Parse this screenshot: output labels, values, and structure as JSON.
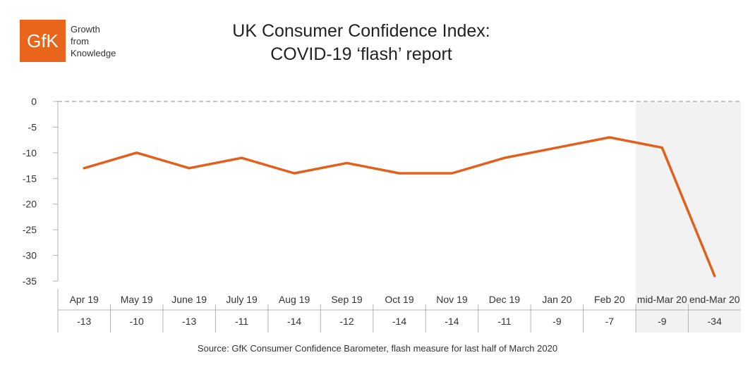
{
  "logo": {
    "mark": "GfK",
    "tagline": [
      "Growth",
      "from",
      "Knowledge"
    ]
  },
  "title_lines": [
    "UK Consumer Confidence Index:",
    "COVID-19 ‘flash’ report"
  ],
  "source": "Source: GfK Consumer Confidence Barometer, flash measure for last half of March 2020",
  "colors": {
    "line": "#e0601c",
    "brand": "#e8651b",
    "highlight": "#f2f2f2",
    "grid": "#b3b3b3"
  },
  "chart_data": {
    "type": "line",
    "title": "UK Consumer Confidence Index: COVID-19 ‘flash’ report",
    "categories": [
      "Apr 19",
      "May 19",
      "June 19",
      "July 19",
      "Aug 19",
      "Sep 19",
      "Oct 19",
      "Nov 19",
      "Dec 19",
      "Jan 20",
      "Feb 20",
      "mid-Mar 20",
      "end-Mar 20"
    ],
    "series": [
      {
        "name": "Consumer Confidence Index",
        "values": [
          -13,
          -10,
          -13,
          -11,
          -14,
          -12,
          -14,
          -14,
          -11,
          -9,
          -7,
          -9,
          -34
        ]
      }
    ],
    "value_labels": [
      "-13",
      "-10",
      "-13",
      "-11",
      "-14",
      "-12",
      "-14",
      "-14",
      "-11",
      "-9",
      "-7",
      "-9",
      "-34"
    ],
    "yticks": [
      "0",
      "-5",
      "-10",
      "-15",
      "-20",
      "-25",
      "-30",
      "-35"
    ],
    "ylim": [
      -35,
      0
    ],
    "highlighted_categories": [
      "mid-Mar 20",
      "end-Mar 20"
    ],
    "zero_line": "dashed",
    "legend": "none"
  }
}
